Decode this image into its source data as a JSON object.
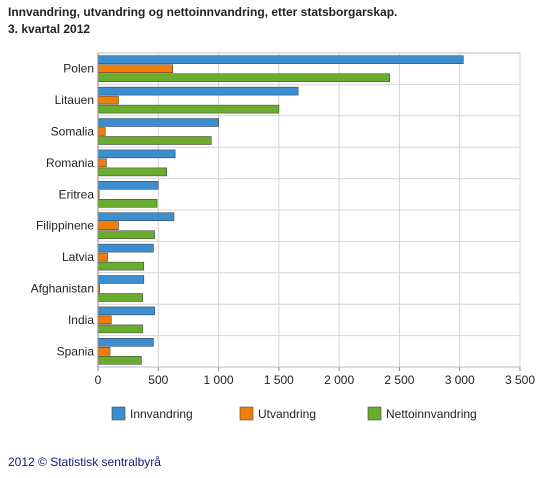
{
  "chart_data": {
    "type": "bar",
    "orientation": "horizontal",
    "title": "Innvandring, utvandring og nettoinnvandring, etter statsborgarskap.",
    "subtitle": "3. kvartal 2012",
    "categories": [
      "Polen",
      "Litauen",
      "Somalia",
      "Romania",
      "Eritrea",
      "Filippinene",
      "Latvia",
      "Afghanistan",
      "India",
      "Spania"
    ],
    "series": [
      {
        "name": "Innvandring",
        "color": "#3b8ed0",
        "values": [
          3030,
          1660,
          1000,
          640,
          500,
          630,
          460,
          380,
          470,
          460
        ]
      },
      {
        "name": "Utvandring",
        "color": "#f07c0a",
        "values": [
          620,
          170,
          60,
          70,
          10,
          170,
          80,
          15,
          110,
          100
        ]
      },
      {
        "name": "Nettoinnvandring",
        "color": "#6aac2e",
        "values": [
          2420,
          1500,
          940,
          570,
          490,
          470,
          380,
          370,
          370,
          360
        ]
      }
    ],
    "xlim": [
      0,
      3500
    ],
    "x_ticks": [
      0,
      500,
      1000,
      1500,
      2000,
      2500,
      3000,
      3500
    ],
    "x_tick_labels": [
      "0",
      "500",
      "1 000",
      "1 500",
      "2 000",
      "2 500",
      "3 000",
      "3 500"
    ],
    "grid": true,
    "legend_position": "bottom"
  },
  "footer": "2012 © Statistisk sentralbyrå"
}
